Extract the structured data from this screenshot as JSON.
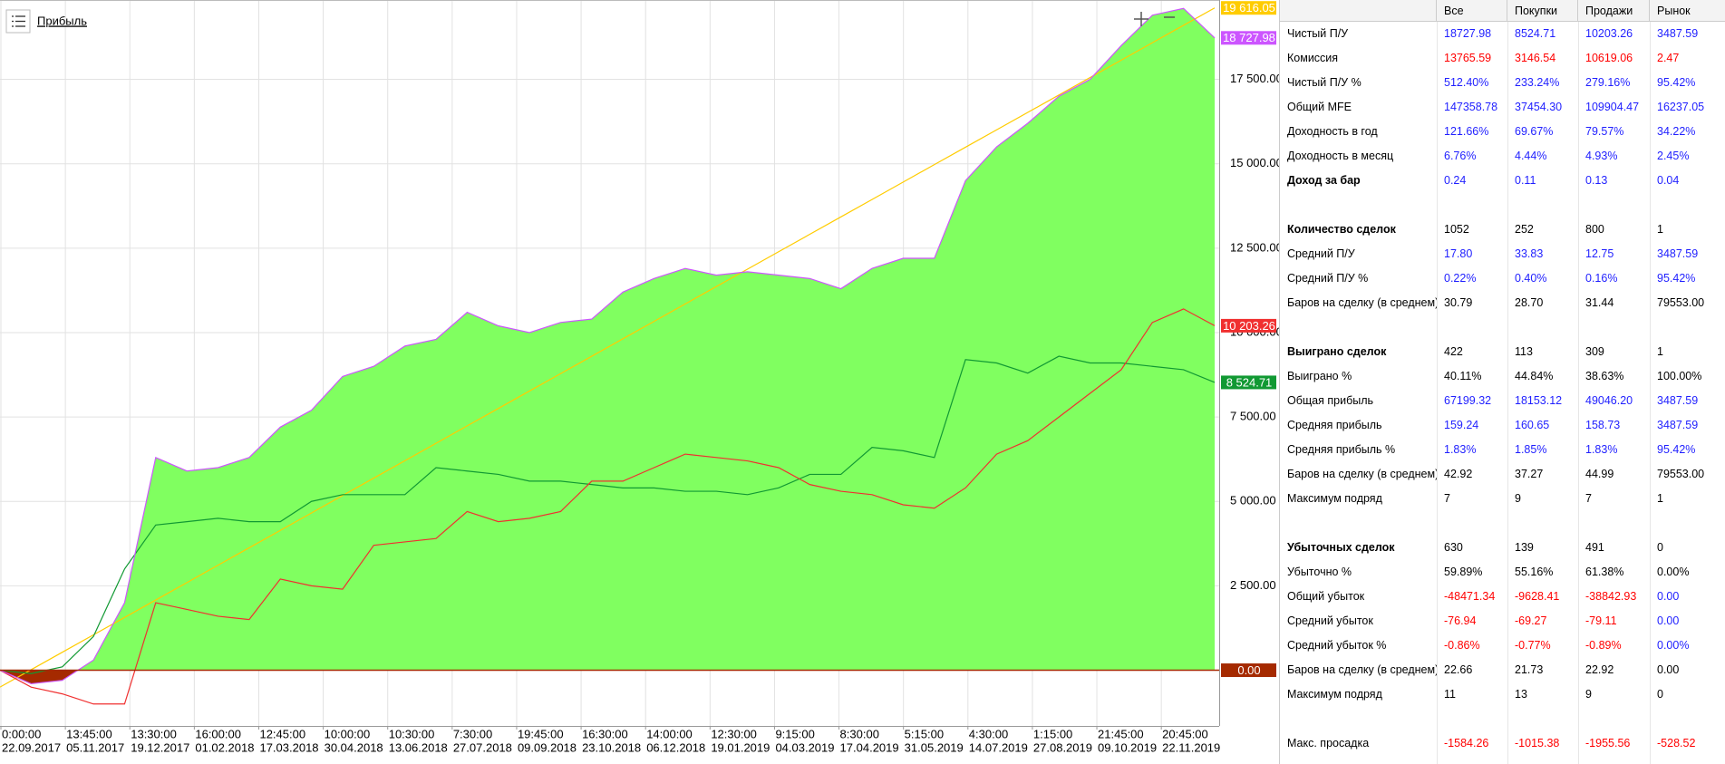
{
  "chart_data": {
    "type": "line",
    "title": "Прибыль",
    "x_labels": [
      {
        "time": "0:00:00",
        "date": "22.09.2017"
      },
      {
        "time": "13:45:00",
        "date": "05.11.2017"
      },
      {
        "time": "13:30:00",
        "date": "19.12.2017"
      },
      {
        "time": "16:00:00",
        "date": "01.02.2018"
      },
      {
        "time": "12:45:00",
        "date": "17.03.2018"
      },
      {
        "time": "10:00:00",
        "date": "30.04.2018"
      },
      {
        "time": "10:30:00",
        "date": "13.06.2018"
      },
      {
        "time": "7:30:00",
        "date": "27.07.2018"
      },
      {
        "time": "19:45:00",
        "date": "09.09.2018"
      },
      {
        "time": "16:30:00",
        "date": "23.10.2018"
      },
      {
        "time": "14:00:00",
        "date": "06.12.2018"
      },
      {
        "time": "12:30:00",
        "date": "19.01.2019"
      },
      {
        "time": "9:15:00",
        "date": "04.03.2019"
      },
      {
        "time": "8:30:00",
        "date": "17.04.2019"
      },
      {
        "time": "5:15:00",
        "date": "31.05.2019"
      },
      {
        "time": "4:30:00",
        "date": "14.07.2019"
      },
      {
        "time": "1:15:00",
        "date": "27.08.2019"
      },
      {
        "time": "21:45:00",
        "date": "09.10.2019"
      },
      {
        "time": "20:45:00",
        "date": "22.11.2019"
      }
    ],
    "ylim": [
      -1650,
      19850
    ],
    "yticks": [
      {
        "value": 0,
        "label": "0.00"
      },
      {
        "value": 2500,
        "label": "2 500.00"
      },
      {
        "value": 5000,
        "label": "5 000.00"
      },
      {
        "value": 7500,
        "label": "7 500.00"
      },
      {
        "value": 10000,
        "label": "10 000.00"
      },
      {
        "value": 12500,
        "label": "12 500.00"
      },
      {
        "value": 15000,
        "label": "15 000.00"
      },
      {
        "value": 17500,
        "label": "17 500.00"
      }
    ],
    "grid": true,
    "zero_line_color": "#a52a00",
    "series": [
      {
        "color": "#cc55ff",
        "area": true,
        "fill": "#80ff60",
        "negative_fill": "#a52a00",
        "end_label": {
          "value": 18727.98,
          "label": "18 727.98"
        },
        "values": [
          0,
          -400,
          -300,
          300,
          2000,
          6300,
          5900,
          6000,
          6300,
          7200,
          7700,
          8700,
          9000,
          9600,
          9800,
          10600,
          10200,
          10000,
          10300,
          10400,
          11200,
          11600,
          11900,
          11700,
          11800,
          11700,
          11600,
          11300,
          11900,
          12200,
          12200,
          14500,
          15500,
          16200,
          17000,
          17500,
          18500,
          19400,
          19600,
          18727.98
        ]
      },
      {
        "color": "#ffcc00",
        "end_label": {
          "value": 19616.05,
          "label": "19 616.05"
        },
        "values": [
          -500,
          16,
          532,
          1047,
          1563,
          2079,
          2595,
          3111,
          3626,
          4142,
          4658,
          5174,
          5690,
          6205,
          6721,
          7237,
          7753,
          8269,
          8784,
          9300,
          9816,
          10332,
          10848,
          11363,
          11879,
          12395,
          12911,
          13427,
          13942,
          14458,
          14974,
          15490,
          16006,
          16521,
          17037,
          17553,
          18069,
          18585,
          19100,
          19616.05
        ]
      },
      {
        "color": "#119933",
        "end_label": {
          "value": 8524.71,
          "label": "8 524.71"
        },
        "values": [
          0,
          -100,
          100,
          1000,
          3000,
          4300,
          4400,
          4500,
          4400,
          4400,
          5000,
          5200,
          5200,
          5200,
          6000,
          5900,
          5800,
          5600,
          5600,
          5500,
          5400,
          5400,
          5300,
          5300,
          5200,
          5400,
          5800,
          5800,
          6600,
          6500,
          6300,
          9200,
          9100,
          8800,
          9300,
          9100,
          9100,
          9000,
          8900,
          8524.71
        ]
      },
      {
        "color": "#f03030",
        "end_label": {
          "value": 10203.26,
          "label": "10 203.26"
        },
        "values": [
          0,
          -500,
          -700,
          -1000,
          -1000,
          2000,
          1800,
          1600,
          1500,
          2700,
          2500,
          2400,
          3700,
          3800,
          3900,
          4700,
          4400,
          4500,
          4700,
          5600,
          5600,
          6000,
          6400,
          6300,
          6200,
          6000,
          5500,
          5300,
          5200,
          4900,
          4800,
          5400,
          6400,
          6800,
          7500,
          8200,
          8900,
          10300,
          10700,
          10203.26
        ]
      }
    ]
  },
  "table": {
    "columns": [
      "Все",
      "Покупки",
      "Продажи",
      "Рынок"
    ],
    "rows": [
      {
        "label": "Чистый П/У",
        "cells": [
          "18727.98",
          "8524.71",
          "10203.26",
          "3487.59"
        ],
        "colors": [
          "#1f1fff",
          "#1f1fff",
          "#1f1fff",
          "#1f1fff"
        ]
      },
      {
        "label": "Комиссия",
        "cells": [
          "13765.59",
          "3146.54",
          "10619.06",
          "2.47"
        ],
        "colors": [
          "#ff0000",
          "#ff0000",
          "#ff0000",
          "#ff0000"
        ]
      },
      {
        "label": "Чистый П/У %",
        "cells": [
          "512.40%",
          "233.24%",
          "279.16%",
          "95.42%"
        ],
        "colors": [
          "#1f1fff",
          "#1f1fff",
          "#1f1fff",
          "#1f1fff"
        ]
      },
      {
        "label": "Общий MFE",
        "cells": [
          "147358.78",
          "37454.30",
          "109904.47",
          "16237.05"
        ],
        "colors": [
          "#1f1fff",
          "#1f1fff",
          "#1f1fff",
          "#1f1fff"
        ]
      },
      {
        "label": "Доходность в год",
        "cells": [
          "121.66%",
          "69.67%",
          "79.57%",
          "34.22%"
        ],
        "colors": [
          "#1f1fff",
          "#1f1fff",
          "#1f1fff",
          "#1f1fff"
        ]
      },
      {
        "label": "Доходность в месяц",
        "cells": [
          "6.76%",
          "4.44%",
          "4.93%",
          "2.45%"
        ],
        "colors": [
          "#1f1fff",
          "#1f1fff",
          "#1f1fff",
          "#1f1fff"
        ]
      },
      {
        "label": "Доход за бар",
        "bold": true,
        "cells": [
          "0.24",
          "0.11",
          "0.13",
          "0.04"
        ],
        "colors": [
          "#1f1fff",
          "#1f1fff",
          "#1f1fff",
          "#1f1fff"
        ]
      },
      {
        "label": "Количество сделок",
        "bold": true,
        "gap_before": true,
        "cells": [
          "1052",
          "252",
          "800",
          "1"
        ]
      },
      {
        "label": "Средний П/У",
        "cells": [
          "17.80",
          "33.83",
          "12.75",
          "3487.59"
        ],
        "colors": [
          "#1f1fff",
          "#1f1fff",
          "#1f1fff",
          "#1f1fff"
        ]
      },
      {
        "label": "Средний П/У %",
        "cells": [
          "0.22%",
          "0.40%",
          "0.16%",
          "95.42%"
        ],
        "colors": [
          "#1f1fff",
          "#1f1fff",
          "#1f1fff",
          "#1f1fff"
        ]
      },
      {
        "label": "Баров на сделку (в среднем)",
        "cells": [
          "30.79",
          "28.70",
          "31.44",
          "79553.00"
        ]
      },
      {
        "label": "Выиграно сделок",
        "bold": true,
        "gap_before": true,
        "cells": [
          "422",
          "113",
          "309",
          "1"
        ]
      },
      {
        "label": "Выиграно %",
        "cells": [
          "40.11%",
          "44.84%",
          "38.63%",
          "100.00%"
        ]
      },
      {
        "label": "Общая прибыль",
        "cells": [
          "67199.32",
          "18153.12",
          "49046.20",
          "3487.59"
        ],
        "colors": [
          "#1f1fff",
          "#1f1fff",
          "#1f1fff",
          "#1f1fff"
        ]
      },
      {
        "label": "Средняя прибыль",
        "cells": [
          "159.24",
          "160.65",
          "158.73",
          "3487.59"
        ],
        "colors": [
          "#1f1fff",
          "#1f1fff",
          "#1f1fff",
          "#1f1fff"
        ]
      },
      {
        "label": "Средняя прибыль %",
        "cells": [
          "1.83%",
          "1.85%",
          "1.83%",
          "95.42%"
        ],
        "colors": [
          "#1f1fff",
          "#1f1fff",
          "#1f1fff",
          "#1f1fff"
        ]
      },
      {
        "label": "Баров на сделку (в среднем)",
        "cells": [
          "42.92",
          "37.27",
          "44.99",
          "79553.00"
        ]
      },
      {
        "label": "Максимум подряд",
        "cells": [
          "7",
          "9",
          "7",
          "1"
        ]
      },
      {
        "label": "Убыточных сделок",
        "bold": true,
        "gap_before": true,
        "cells": [
          "630",
          "139",
          "491",
          "0"
        ]
      },
      {
        "label": "Убыточно %",
        "cells": [
          "59.89%",
          "55.16%",
          "61.38%",
          "0.00%"
        ]
      },
      {
        "label": "Общий убыток",
        "cells": [
          "-48471.34",
          "-9628.41",
          "-38842.93",
          "0.00"
        ],
        "colors": [
          "#ff0000",
          "#ff0000",
          "#ff0000",
          "#1f1fff"
        ]
      },
      {
        "label": "Средний убыток",
        "cells": [
          "-76.94",
          "-69.27",
          "-79.11",
          "0.00"
        ],
        "colors": [
          "#ff0000",
          "#ff0000",
          "#ff0000",
          "#1f1fff"
        ]
      },
      {
        "label": "Средний убыток %",
        "cells": [
          "-0.86%",
          "-0.77%",
          "-0.89%",
          "0.00%"
        ],
        "colors": [
          "#ff0000",
          "#ff0000",
          "#ff0000",
          "#1f1fff"
        ]
      },
      {
        "label": "Баров на сделку (в среднем)",
        "cells": [
          "22.66",
          "21.73",
          "22.92",
          "0.00"
        ]
      },
      {
        "label": "Максимум подряд",
        "cells": [
          "11",
          "13",
          "9",
          "0"
        ]
      },
      {
        "label": "Макс. просадка",
        "gap_before": true,
        "cells": [
          "-1584.26",
          "-1015.38",
          "-1955.56",
          "-528.52"
        ],
        "colors": [
          "#ff0000",
          "#ff0000",
          "#ff0000",
          "#ff0000"
        ]
      }
    ]
  }
}
